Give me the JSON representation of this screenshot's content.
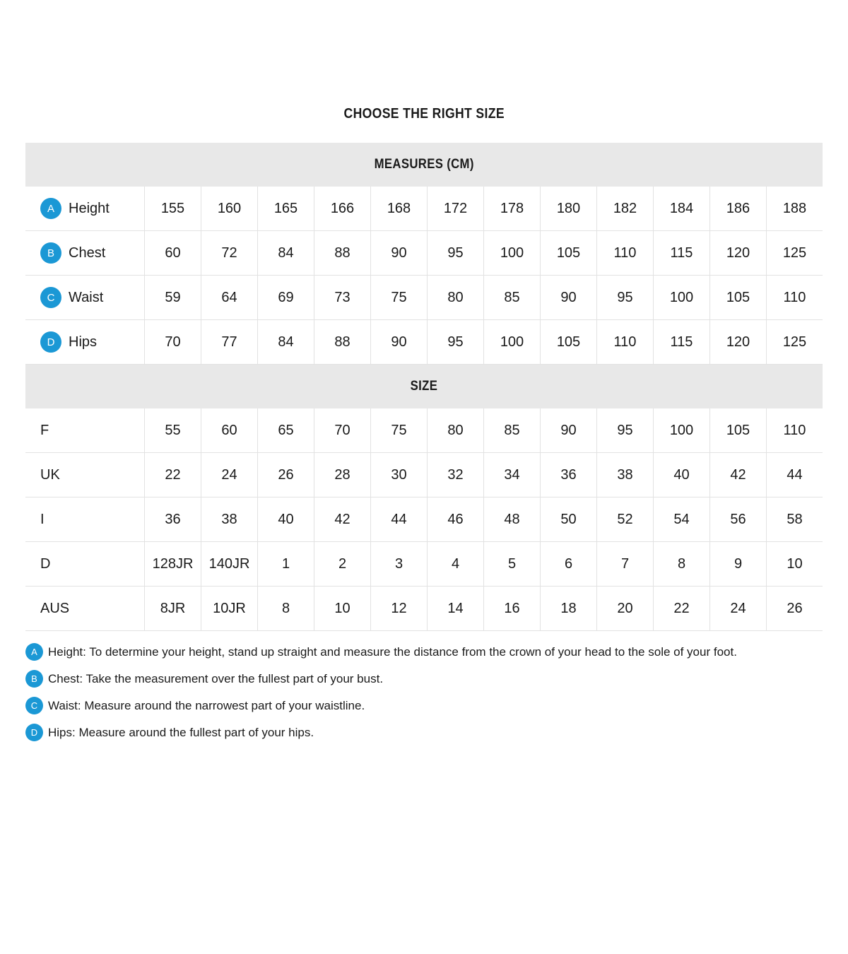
{
  "title": "CHOOSE THE RIGHT SIZE",
  "colors": {
    "accent_blue": "#1b98d5",
    "band_gray": "#e8e8e8",
    "grid_line": "#e2e2e2",
    "text_dark": "#1a1a1a"
  },
  "measures_section": {
    "header": "MEASURES (CM)",
    "rows": [
      {
        "badge": "A",
        "label": "Height",
        "values": [
          "155",
          "160",
          "165",
          "166",
          "168",
          "172",
          "178",
          "180",
          "182",
          "184",
          "186",
          "188"
        ]
      },
      {
        "badge": "B",
        "label": "Chest",
        "values": [
          "60",
          "72",
          "84",
          "88",
          "90",
          "95",
          "100",
          "105",
          "110",
          "115",
          "120",
          "125"
        ]
      },
      {
        "badge": "C",
        "label": "Waist",
        "values": [
          "59",
          "64",
          "69",
          "73",
          "75",
          "80",
          "85",
          "90",
          "95",
          "100",
          "105",
          "110"
        ]
      },
      {
        "badge": "D",
        "label": "Hips",
        "values": [
          "70",
          "77",
          "84",
          "88",
          "90",
          "95",
          "100",
          "105",
          "110",
          "115",
          "120",
          "125"
        ]
      }
    ]
  },
  "size_section": {
    "header": "SIZE",
    "rows": [
      {
        "label": "F",
        "values": [
          "55",
          "60",
          "65",
          "70",
          "75",
          "80",
          "85",
          "90",
          "95",
          "100",
          "105",
          "110"
        ]
      },
      {
        "label": "UK",
        "values": [
          "22",
          "24",
          "26",
          "28",
          "30",
          "32",
          "34",
          "36",
          "38",
          "40",
          "42",
          "44"
        ]
      },
      {
        "label": "I",
        "values": [
          "36",
          "38",
          "40",
          "42",
          "44",
          "46",
          "48",
          "50",
          "52",
          "54",
          "56",
          "58"
        ]
      },
      {
        "label": "D",
        "values": [
          "128JR",
          "140JR",
          "1",
          "2",
          "3",
          "4",
          "5",
          "6",
          "7",
          "8",
          "9",
          "10"
        ]
      },
      {
        "label": "AUS",
        "values": [
          "8JR",
          "10JR",
          "8",
          "10",
          "12",
          "14",
          "16",
          "18",
          "20",
          "22",
          "24",
          "26"
        ]
      }
    ]
  },
  "footnotes": [
    {
      "badge": "A",
      "text": "Height: To determine your height, stand up straight and measure the distance from the crown of your head to the sole of your foot."
    },
    {
      "badge": "B",
      "text": "Chest: Take the measurement over the fullest part of your bust."
    },
    {
      "badge": "C",
      "text": "Waist: Measure around the narrowest part of your waistline."
    },
    {
      "badge": "D",
      "text": "Hips: Measure around the fullest part of your hips."
    }
  ]
}
